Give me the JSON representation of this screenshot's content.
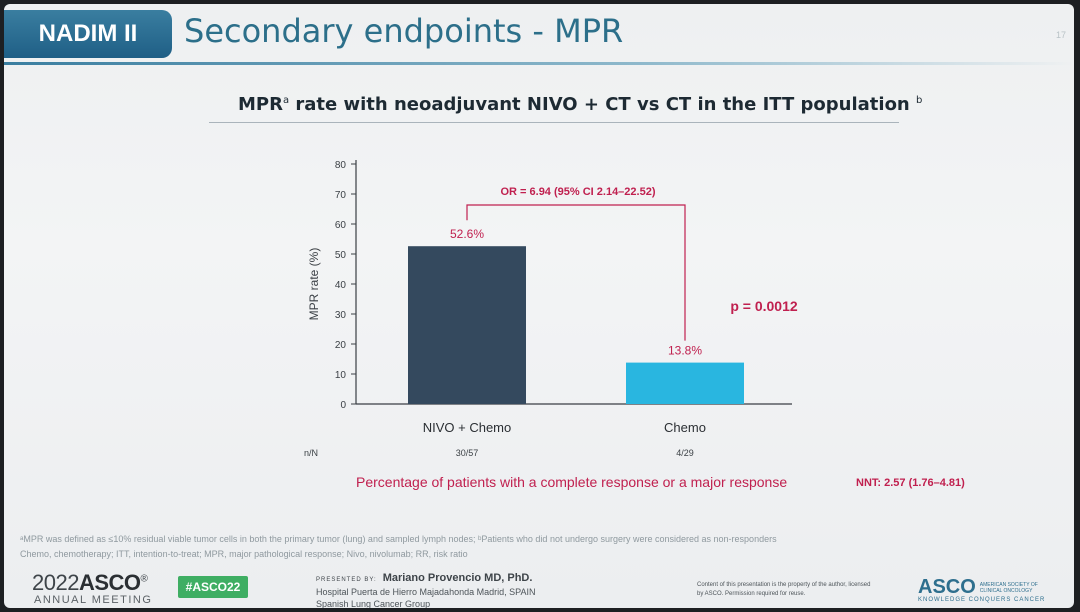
{
  "header": {
    "tag": "NADIM II",
    "title": "Secondary endpoints - MPR",
    "slide_number": "17"
  },
  "chart_data": {
    "type": "bar",
    "title": "MPR",
    "title_sup_a": "a",
    "title_rest": " rate with neoadjuvant NIVO + CT vs CT in the ITT population ",
    "title_sup_b": "b",
    "ylabel": "MPR rate (%)",
    "ylim": [
      0,
      80
    ],
    "yticks": [
      0,
      10,
      20,
      30,
      40,
      50,
      60,
      70,
      80
    ],
    "categories": [
      "NIVO + Chemo",
      "Chemo"
    ],
    "values": [
      52.6,
      13.8
    ],
    "value_labels": [
      "52.6%",
      "13.8%"
    ],
    "n_label": "n/N",
    "n_values": [
      "30/57",
      "4/29"
    ],
    "colors": [
      "#34495e",
      "#29b6e0"
    ],
    "annotation_or": "OR = 6.94 (95% CI 2.14–22.52)",
    "annotation_p": "p = 0.0012",
    "annotation_color": "#c0204f"
  },
  "footer": {
    "percentage_note": "Percentage of patients with a complete response or a major response",
    "nnt": "NNT: 2.57 (1.76–4.81)",
    "footnote1": "ᵃMPR was defined as ≤10% residual viable tumor cells in both the primary tumor (lung) and sampled lymph nodes; ᵇPatients who did not undergo surgery were considered as non-responders",
    "footnote2": "Chemo, chemotherapy; ITT, intention-to-treat; MPR, major pathological response; Nivo, nivolumab; RR, risk ratio",
    "meeting_year": "2022",
    "meeting_brand": "ASCO",
    "meeting_sub": "ANNUAL MEETING",
    "hashtag": "#ASCO22",
    "presented_by": "PRESENTED BY:",
    "presenter_name": "Mariano Provencio MD, PhD.",
    "presenter_inst1": "Hospital Puerta de Hierro Majadahonda Madrid, SPAIN",
    "presenter_inst2": "Spanish Lung Cancer Group",
    "copyright": "Content of this presentation is the property of the author, licensed by ASCO. Permission required for reuse.",
    "asco_logo": "ASCO",
    "asco_logo_small": "AMERICAN SOCIETY OF CLINICAL ONCOLOGY",
    "asco_tagline": "KNOWLEDGE CONQUERS CANCER"
  }
}
